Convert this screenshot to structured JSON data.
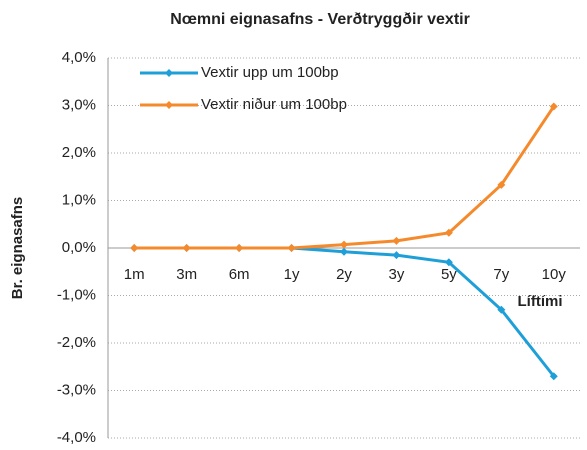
{
  "chart_data": {
    "type": "line",
    "title": "Nœmni eignasafns - Verðtryggðir vextir",
    "y_label": "Br. eignasafns",
    "x_label": "Líftími",
    "categories": [
      "1m",
      "3m",
      "6m",
      "1y",
      "2y",
      "3y",
      "5y",
      "7y",
      "10y"
    ],
    "series": [
      {
        "name": "Vextir upp um 100bp",
        "color": "#1f9fd8",
        "values": [
          0,
          0,
          0,
          0,
          -0.08,
          -0.15,
          -0.3,
          -1.3,
          -2.7
        ]
      },
      {
        "name": "Vextir niður um 100bp",
        "color": "#f58a2c",
        "values": [
          0,
          0,
          0,
          0,
          0.07,
          0.15,
          0.32,
          1.33,
          2.98
        ]
      }
    ],
    "ylim": [
      -4,
      4
    ],
    "yticks": [
      {
        "value": -4,
        "label": "-4,0%"
      },
      {
        "value": -3,
        "label": "-3,0%"
      },
      {
        "value": -2,
        "label": "-2,0%"
      },
      {
        "value": -1,
        "label": "-1,0%"
      },
      {
        "value": 0,
        "label": "0,0%"
      },
      {
        "value": 1,
        "label": "1,0%"
      },
      {
        "value": 2,
        "label": "2,0%"
      },
      {
        "value": 3,
        "label": "3,0%"
      },
      {
        "value": 4,
        "label": "4,0%"
      }
    ],
    "grid": true,
    "legend": "upper left"
  }
}
